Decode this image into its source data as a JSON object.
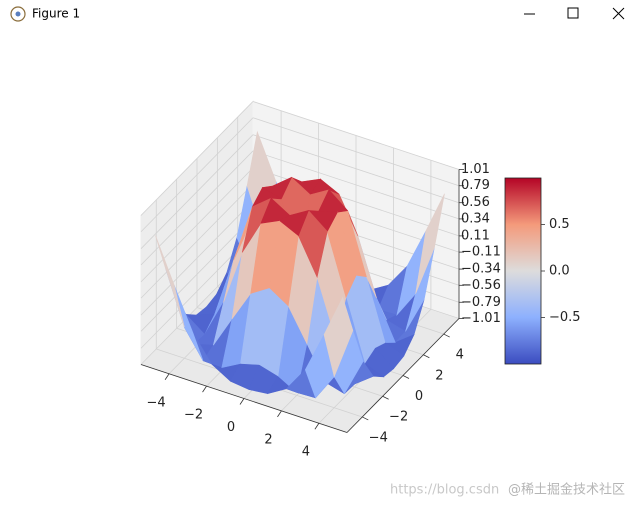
{
  "window_title": "Figure 1",
  "chart_data": {
    "type": "surface3d",
    "x": [
      -5,
      -4,
      -3,
      -2,
      -1,
      0,
      1,
      2,
      3,
      4,
      5
    ],
    "y": [
      -5,
      -4,
      -3,
      -2,
      -1,
      0,
      1,
      2,
      3,
      4,
      5
    ],
    "z": [
      [
        0.71,
        0.12,
        -0.44,
        -0.78,
        -0.93,
        -0.96,
        -0.93,
        -0.78,
        -0.44,
        0.12,
        0.71
      ],
      [
        0.12,
        -0.59,
        -0.96,
        -0.97,
        -0.83,
        -0.76,
        -0.83,
        -0.97,
        -0.96,
        -0.59,
        0.12
      ],
      [
        -0.44,
        -0.96,
        -0.89,
        -0.45,
        -0.02,
        0.14,
        -0.02,
        -0.45,
        -0.89,
        -0.96,
        -0.44
      ],
      [
        -0.78,
        -0.97,
        -0.45,
        0.31,
        0.79,
        0.91,
        0.79,
        0.31,
        -0.45,
        -0.97,
        -0.78
      ],
      [
        -0.93,
        -0.83,
        -0.02,
        0.79,
        0.99,
        0.84,
        0.99,
        0.79,
        -0.02,
        -0.83,
        -0.93
      ],
      [
        -0.96,
        -0.76,
        0.14,
        0.91,
        0.84,
        0.0,
        0.84,
        0.91,
        0.14,
        -0.76,
        -0.96
      ],
      [
        -0.93,
        -0.83,
        -0.02,
        0.79,
        0.99,
        0.84,
        0.99,
        0.79,
        -0.02,
        -0.83,
        -0.93
      ],
      [
        -0.78,
        -0.97,
        -0.45,
        0.31,
        0.79,
        0.91,
        0.79,
        0.31,
        -0.45,
        -0.97,
        -0.78
      ],
      [
        -0.44,
        -0.96,
        -0.89,
        -0.45,
        -0.02,
        0.14,
        -0.02,
        -0.45,
        -0.89,
        -0.96,
        -0.44
      ],
      [
        0.12,
        -0.59,
        -0.96,
        -0.97,
        -0.83,
        -0.76,
        -0.83,
        -0.97,
        -0.96,
        -0.59,
        0.12
      ],
      [
        0.71,
        0.12,
        -0.44,
        -0.78,
        -0.93,
        -0.96,
        -0.93,
        -0.78,
        -0.44,
        0.12,
        0.71
      ]
    ],
    "xlim": [
      -5.5,
      5.5
    ],
    "ylim": [
      -5.5,
      5.5
    ],
    "zlim": [
      -1.01,
      1.01
    ],
    "xticks": [
      {
        "value": -4,
        "label": "−4"
      },
      {
        "value": -2,
        "label": "−2"
      },
      0,
      2,
      4
    ],
    "yticks": [
      {
        "value": -4,
        "label": "−4"
      },
      {
        "value": -2,
        "label": "−2"
      },
      0,
      2,
      4
    ],
    "zticks": [
      1.01,
      0.79,
      0.56,
      0.34,
      0.11,
      {
        "value": -0.11,
        "label": "−0.11"
      },
      {
        "value": -0.34,
        "label": "−0.34"
      },
      {
        "value": -0.56,
        "label": "−0.56"
      },
      {
        "value": -0.79,
        "label": "−0.79"
      },
      {
        "value": -1.01,
        "label": "−1.01"
      }
    ],
    "cmap": [
      "#3b4cc0",
      "#8db0fe",
      "#dddcdc",
      "#f49a7b",
      "#b40426"
    ],
    "colorbar": {
      "clim": [
        -1,
        1
      ],
      "ticks": [
        0.5,
        {
          "value": 0,
          "label": "0.0"
        },
        {
          "value": -0.5,
          "label": "−0.5"
        }
      ]
    },
    "grid": true
  },
  "watermark": {
    "url": "https://blog.csdn",
    "handle": "@稀土掘金技术社区"
  }
}
